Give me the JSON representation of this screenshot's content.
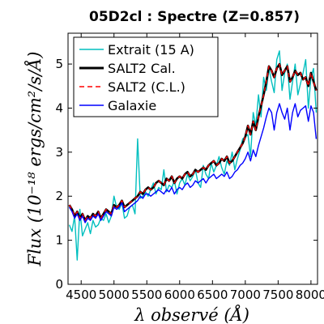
{
  "chart_data": {
    "type": "line",
    "title": "05D2cl : Spectre (Z=0.857)",
    "xlabel": "λ observé (Å)",
    "ylabel": "Flux (10⁻¹⁸ ergs/cm²/s/Å)",
    "xlim": [
      4300,
      8100
    ],
    "ylim": [
      0,
      5.7
    ],
    "xticks": [
      4500,
      5000,
      5500,
      6000,
      6500,
      7000,
      7500,
      8000
    ],
    "xtick_labels": [
      "4500",
      "5000",
      "5500",
      "6000",
      "6500",
      "7000",
      "7500",
      "8000"
    ],
    "yticks": [
      0,
      1,
      2,
      3,
      4,
      5
    ],
    "ytick_labels": [
      "0",
      "1",
      "2",
      "3",
      "4",
      "5"
    ],
    "legend_position": "top-left",
    "series": [
      {
        "name": "Extrait (15 A)",
        "color": "#00bfbf",
        "style": "solid",
        "x": [
          4320,
          4360,
          4400,
          4440,
          4480,
          4520,
          4560,
          4600,
          4640,
          4680,
          4720,
          4760,
          4800,
          4840,
          4880,
          4920,
          4960,
          5000,
          5040,
          5080,
          5120,
          5160,
          5200,
          5240,
          5280,
          5320,
          5360,
          5400,
          5440,
          5480,
          5520,
          5560,
          5600,
          5640,
          5680,
          5720,
          5760,
          5800,
          5840,
          5880,
          5920,
          5960,
          6000,
          6040,
          6080,
          6120,
          6160,
          6200,
          6240,
          6280,
          6320,
          6360,
          6400,
          6440,
          6480,
          6520,
          6560,
          6600,
          6640,
          6680,
          6720,
          6760,
          6800,
          6840,
          6880,
          6920,
          6960,
          7000,
          7040,
          7080,
          7120,
          7160,
          7200,
          7240,
          7280,
          7320,
          7360,
          7400,
          7440,
          7480,
          7520,
          7560,
          7600,
          7640,
          7680,
          7720,
          7760,
          7800,
          7840,
          7880,
          7920,
          7960,
          8000,
          8040,
          8080
        ],
        "y": [
          1.35,
          1.2,
          1.55,
          0.55,
          1.7,
          1.1,
          1.25,
          1.4,
          1.15,
          1.45,
          1.3,
          1.35,
          1.5,
          1.45,
          1.6,
          1.4,
          1.55,
          2.0,
          1.75,
          1.7,
          1.85,
          1.5,
          1.55,
          1.75,
          1.8,
          1.6,
          3.3,
          1.95,
          2.0,
          2.1,
          2.0,
          2.15,
          2.3,
          2.05,
          2.2,
          2.15,
          2.6,
          2.1,
          2.25,
          2.2,
          2.35,
          2.05,
          2.3,
          2.4,
          2.25,
          2.5,
          2.35,
          2.45,
          2.6,
          2.3,
          2.2,
          2.7,
          2.5,
          2.4,
          2.75,
          2.55,
          2.7,
          2.9,
          2.65,
          2.5,
          2.8,
          2.7,
          3.0,
          2.6,
          2.85,
          3.05,
          3.3,
          3.35,
          3.4,
          2.9,
          3.9,
          3.6,
          4.3,
          3.8,
          4.7,
          4.4,
          4.9,
          4.6,
          4.35,
          5.1,
          5.3,
          4.4,
          4.8,
          5.0,
          4.2,
          4.6,
          5.0,
          4.3,
          4.55,
          4.8,
          5.1,
          4.0,
          4.7,
          4.9,
          3.9
        ]
      },
      {
        "name": "SALT2 Cal.",
        "color": "#000000",
        "style": "solid-thick",
        "x": [
          4320,
          4360,
          4400,
          4440,
          4480,
          4520,
          4560,
          4600,
          4640,
          4680,
          4720,
          4760,
          4800,
          4840,
          4880,
          4920,
          4960,
          5000,
          5040,
          5080,
          5120,
          5160,
          5200,
          5240,
          5280,
          5320,
          5360,
          5400,
          5440,
          5480,
          5520,
          5560,
          5600,
          5640,
          5680,
          5720,
          5760,
          5800,
          5840,
          5880,
          5920,
          5960,
          6000,
          6040,
          6080,
          6120,
          6160,
          6200,
          6240,
          6280,
          6320,
          6360,
          6400,
          6440,
          6480,
          6520,
          6560,
          6600,
          6640,
          6680,
          6720,
          6760,
          6800,
          6840,
          6880,
          6920,
          6960,
          7000,
          7040,
          7080,
          7120,
          7160,
          7200,
          7240,
          7280,
          7320,
          7360,
          7400,
          7440,
          7480,
          7520,
          7560,
          7600,
          7640,
          7680,
          7720,
          7760,
          7800,
          7840,
          7880,
          7920,
          7960,
          8000,
          8040,
          8080
        ],
        "y": [
          1.8,
          1.7,
          1.55,
          1.65,
          1.5,
          1.6,
          1.45,
          1.55,
          1.5,
          1.6,
          1.55,
          1.65,
          1.5,
          1.6,
          1.7,
          1.65,
          1.6,
          1.8,
          1.75,
          1.8,
          1.9,
          1.75,
          1.8,
          1.85,
          1.9,
          1.95,
          2.0,
          2.1,
          2.05,
          2.15,
          2.2,
          2.15,
          2.2,
          2.3,
          2.35,
          2.3,
          2.25,
          2.4,
          2.35,
          2.45,
          2.3,
          2.4,
          2.45,
          2.4,
          2.5,
          2.55,
          2.45,
          2.5,
          2.6,
          2.55,
          2.6,
          2.65,
          2.6,
          2.7,
          2.75,
          2.8,
          2.7,
          2.75,
          2.85,
          2.8,
          2.9,
          2.75,
          2.8,
          2.9,
          3.0,
          3.1,
          3.2,
          3.35,
          3.6,
          3.4,
          3.7,
          3.5,
          3.8,
          4.05,
          4.3,
          4.6,
          4.95,
          4.85,
          4.7,
          4.9,
          5.0,
          4.75,
          4.85,
          4.95,
          4.6,
          4.7,
          4.85,
          4.75,
          4.8,
          4.65,
          4.7,
          4.5,
          4.8,
          4.6,
          4.4
        ]
      },
      {
        "name": "SALT2 (C.L.)",
        "color": "#ff0000",
        "style": "dashed",
        "x": [
          4320,
          4360,
          4400,
          4440,
          4480,
          4520,
          4560,
          4600,
          4640,
          4680,
          4720,
          4760,
          4800,
          4840,
          4880,
          4920,
          4960,
          5000,
          5040,
          5080,
          5120,
          5160,
          5200,
          5240,
          5280,
          5320,
          5360,
          5400,
          5440,
          5480,
          5520,
          5560,
          5600,
          5640,
          5680,
          5720,
          5760,
          5800,
          5840,
          5880,
          5920,
          5960,
          6000,
          6040,
          6080,
          6120,
          6160,
          6200,
          6240,
          6280,
          6320,
          6360,
          6400,
          6440,
          6480,
          6520,
          6560,
          6600,
          6640,
          6680,
          6720,
          6760,
          6800,
          6840,
          6880,
          6920,
          6960,
          7000,
          7040,
          7080,
          7120,
          7160,
          7200,
          7240,
          7280,
          7320,
          7360,
          7400,
          7440,
          7480,
          7520,
          7560,
          7600,
          7640,
          7680,
          7720,
          7760,
          7800,
          7840,
          7880,
          7920,
          7960,
          8000,
          8040,
          8080
        ],
        "y": [
          1.8,
          1.7,
          1.55,
          1.65,
          1.5,
          1.6,
          1.45,
          1.55,
          1.5,
          1.6,
          1.55,
          1.65,
          1.5,
          1.6,
          1.7,
          1.65,
          1.6,
          1.8,
          1.75,
          1.8,
          1.9,
          1.75,
          1.8,
          1.85,
          1.9,
          1.95,
          2.0,
          2.1,
          2.05,
          2.15,
          2.2,
          2.15,
          2.2,
          2.3,
          2.35,
          2.3,
          2.25,
          2.4,
          2.35,
          2.45,
          2.3,
          2.4,
          2.45,
          2.4,
          2.5,
          2.55,
          2.45,
          2.5,
          2.6,
          2.55,
          2.6,
          2.65,
          2.6,
          2.7,
          2.75,
          2.8,
          2.7,
          2.75,
          2.85,
          2.8,
          2.9,
          2.75,
          2.8,
          2.9,
          3.0,
          3.1,
          3.2,
          3.35,
          3.6,
          3.4,
          3.7,
          3.5,
          3.8,
          4.05,
          4.3,
          4.6,
          4.95,
          4.85,
          4.7,
          4.9,
          5.0,
          4.75,
          4.85,
          4.95,
          4.6,
          4.7,
          4.85,
          4.75,
          4.8,
          4.65,
          4.7,
          4.5,
          4.8,
          4.6,
          4.4
        ]
      },
      {
        "name": "Galaxie",
        "color": "#0000ff",
        "style": "solid",
        "x": [
          4320,
          4360,
          4400,
          4440,
          4480,
          4520,
          4560,
          4600,
          4640,
          4680,
          4720,
          4760,
          4800,
          4840,
          4880,
          4920,
          4960,
          5000,
          5040,
          5080,
          5120,
          5160,
          5200,
          5240,
          5280,
          5320,
          5360,
          5400,
          5440,
          5480,
          5520,
          5560,
          5600,
          5640,
          5680,
          5720,
          5760,
          5800,
          5840,
          5880,
          5920,
          5960,
          6000,
          6040,
          6080,
          6120,
          6160,
          6200,
          6240,
          6280,
          6320,
          6360,
          6400,
          6440,
          6480,
          6520,
          6560,
          6600,
          6640,
          6680,
          6720,
          6760,
          6800,
          6840,
          6880,
          6920,
          6960,
          7000,
          7040,
          7080,
          7120,
          7160,
          7200,
          7240,
          7280,
          7320,
          7360,
          7400,
          7440,
          7480,
          7520,
          7560,
          7600,
          7640,
          7680,
          7720,
          7760,
          7800,
          7840,
          7880,
          7920,
          7960,
          8000,
          8040,
          8080
        ],
        "y": [
          1.75,
          1.65,
          1.5,
          1.6,
          1.45,
          1.55,
          1.4,
          1.5,
          1.45,
          1.55,
          1.5,
          1.6,
          1.45,
          1.55,
          1.65,
          1.6,
          1.55,
          1.75,
          1.7,
          1.75,
          1.85,
          1.65,
          1.7,
          1.75,
          1.8,
          1.85,
          1.9,
          2.0,
          1.95,
          2.05,
          2.05,
          2.0,
          2.05,
          2.1,
          2.15,
          2.1,
          2.05,
          2.15,
          2.1,
          2.2,
          2.05,
          2.15,
          2.2,
          2.15,
          2.25,
          2.3,
          2.2,
          2.25,
          2.35,
          2.3,
          2.35,
          2.4,
          2.3,
          2.4,
          2.45,
          2.5,
          2.4,
          2.45,
          2.5,
          2.45,
          2.55,
          2.4,
          2.45,
          2.55,
          2.6,
          2.7,
          2.75,
          2.85,
          3.0,
          2.8,
          3.05,
          2.9,
          3.15,
          3.35,
          3.55,
          3.8,
          4.0,
          3.9,
          3.5,
          3.9,
          4.1,
          3.9,
          3.75,
          4.0,
          3.5,
          3.9,
          4.1,
          3.8,
          3.95,
          4.0,
          4.05,
          3.7,
          4.05,
          3.9,
          3.3
        ]
      }
    ]
  }
}
